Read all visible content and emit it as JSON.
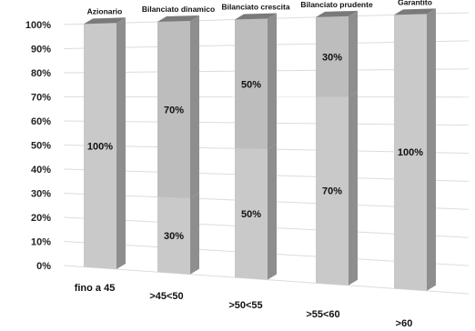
{
  "chart_data": {
    "type": "bar",
    "stacked": true,
    "three_d": true,
    "categories": [
      "fino a 45",
      ">45<50",
      ">50<55",
      ">55<60",
      ">60"
    ],
    "bar_titles": [
      "Azionario",
      "Bilanciato dinamico",
      "Bilanciato crescita",
      "Bilanciato prudente",
      "Garantito"
    ],
    "series": [
      {
        "values": [
          100,
          30,
          50,
          70,
          100
        ],
        "labels": [
          "100%",
          "30%",
          "50%",
          "70%",
          "100%"
        ]
      },
      {
        "values": [
          0,
          70,
          50,
          30,
          0
        ],
        "labels": [
          "",
          "70%",
          "50%",
          "30%",
          ""
        ]
      }
    ],
    "yticks": [
      "0%",
      "10%",
      "20%",
      "30%",
      "40%",
      "50%",
      "60%",
      "70%",
      "80%",
      "90%",
      "100%"
    ],
    "ylim": [
      0,
      100
    ],
    "grid": true,
    "legend": "none",
    "colors": {
      "bottom_front": "#c9c9c9",
      "top_front": "#bdbdbd",
      "side": "#8e8e8e",
      "cap": "#7a7a7a"
    }
  }
}
